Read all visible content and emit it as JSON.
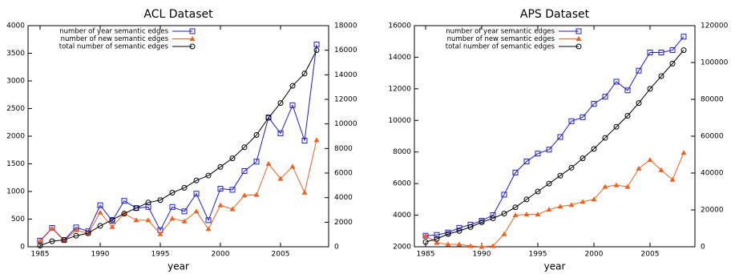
{
  "chart_data": [
    {
      "type": "line",
      "title": "ACL Dataset",
      "xlabel": "year",
      "legend": "upper left",
      "x": [
        1985,
        1986,
        1987,
        1988,
        1989,
        1990,
        1991,
        1992,
        1993,
        1994,
        1995,
        1996,
        1997,
        1998,
        1999,
        2000,
        2001,
        2002,
        2003,
        2004,
        2005,
        2006,
        2007,
        2008
      ],
      "xlim": [
        1984,
        2009
      ],
      "xticks": [
        1985,
        1990,
        1995,
        2000,
        2005
      ],
      "ylim": [
        0,
        4000
      ],
      "yticks": [
        0,
        500,
        1000,
        1500,
        2000,
        2500,
        3000,
        3500,
        4000
      ],
      "y2lim": [
        0,
        18000
      ],
      "y2ticks": [
        0,
        2000,
        4000,
        6000,
        8000,
        10000,
        12000,
        14000,
        16000,
        18000
      ],
      "series": [
        {
          "name": "number of year semantic edges",
          "color": "#1c1cd6",
          "marker": "square",
          "values": [
            110,
            340,
            120,
            350,
            280,
            750,
            470,
            830,
            700,
            720,
            300,
            720,
            640,
            960,
            480,
            1050,
            1030,
            1370,
            1540,
            2340,
            2050,
            2560,
            1920,
            3660
          ]
        },
        {
          "name": "number of new semantic edges",
          "color": "#f0601e",
          "marker": "triangle",
          "values": [
            100,
            330,
            110,
            300,
            240,
            620,
            360,
            600,
            480,
            480,
            230,
            510,
            460,
            640,
            320,
            750,
            680,
            930,
            940,
            1500,
            1230,
            1450,
            980,
            1930
          ]
        },
        {
          "name": "total number of semantic edges",
          "color": "#000000",
          "marker": "circle",
          "axis": "y2",
          "values": [
            100,
            450,
            560,
            900,
            1100,
            1700,
            2200,
            2700,
            3150,
            3600,
            3800,
            4400,
            4800,
            5400,
            5800,
            6500,
            7200,
            8100,
            9100,
            10500,
            11700,
            13100,
            14100,
            16000
          ]
        }
      ]
    },
    {
      "type": "line",
      "title": "APS Dataset",
      "xlabel": "year",
      "legend": "upper left",
      "x": [
        1985,
        1986,
        1987,
        1988,
        1989,
        1990,
        1991,
        1992,
        1993,
        1994,
        1995,
        1996,
        1997,
        1998,
        1999,
        2000,
        2001,
        2002,
        2003,
        2004,
        2005,
        2006,
        2007,
        2008
      ],
      "xlim": [
        1984,
        2009
      ],
      "xticks": [
        1985,
        1990,
        1995,
        2000,
        2005
      ],
      "ylim": [
        2000,
        16000
      ],
      "yticks": [
        2000,
        4000,
        6000,
        8000,
        10000,
        12000,
        14000,
        16000
      ],
      "y2lim": [
        0,
        120000
      ],
      "y2ticks": [
        0,
        20000,
        40000,
        60000,
        80000,
        100000,
        120000
      ],
      "series": [
        {
          "name": "number of year semantic edges",
          "color": "#1c1cd6",
          "marker": "square",
          "values": [
            2700,
            2750,
            2900,
            3200,
            3400,
            3650,
            4000,
            5300,
            6700,
            7400,
            7900,
            8150,
            8950,
            9950,
            10200,
            11050,
            11500,
            12450,
            11900,
            13150,
            14300,
            14300,
            14450,
            15300
          ]
        },
        {
          "name": "number of new semantic edges",
          "color": "#f0601e",
          "marker": "triangle",
          "values": [
            2700,
            2250,
            2150,
            2150,
            2050,
            2000,
            2050,
            2800,
            4000,
            4050,
            4050,
            4350,
            4550,
            4650,
            4850,
            5000,
            5800,
            5900,
            5800,
            6950,
            7500,
            6850,
            6250,
            7950
          ]
        },
        {
          "name": "total number of semantic edges",
          "color": "#000000",
          "marker": "circle",
          "axis": "y2",
          "values": [
            2600,
            4300,
            6900,
            8600,
            10700,
            13300,
            15400,
            18000,
            21400,
            25700,
            30000,
            34300,
            38600,
            42900,
            48000,
            53100,
            59100,
            65100,
            71100,
            78000,
            85700,
            92600,
            99400,
            106700
          ]
        }
      ]
    }
  ]
}
